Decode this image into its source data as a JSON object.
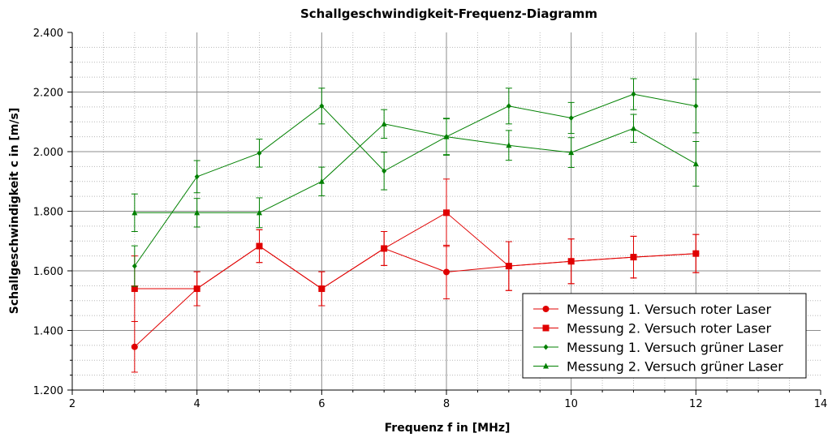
{
  "chart_data": {
    "type": "line",
    "title": "Schallgeschwindigkeit-Frequenz-Diagramm",
    "xlabel": "Frequenz f in [MHz]",
    "ylabel": "Schallgeschwindigkeit c in [m/s]",
    "xlim": [
      2,
      14
    ],
    "ylim": [
      1.2,
      2.4
    ],
    "x_ticks": [
      "2",
      "4",
      "6",
      "8",
      "10",
      "12",
      "14"
    ],
    "y_ticks": [
      "1.200",
      "1.400",
      "1.600",
      "1.800",
      "2.000",
      "2.200",
      "2.400"
    ],
    "grid": true,
    "legend_position": "bottom-right",
    "error_bars": true,
    "series": [
      {
        "name": "Messung 1. Versuch roter Laser",
        "color": "#e00000",
        "marker": "circle",
        "x": [
          3,
          4,
          5,
          6,
          7,
          8,
          9,
          10,
          11,
          12
        ],
        "y": [
          1.345,
          1.54,
          1.683,
          1.54,
          1.675,
          1.596,
          1.616,
          1.632,
          1.646,
          1.658
        ],
        "err": [
          0.085,
          0.057,
          0.055,
          0.057,
          0.057,
          0.09,
          0.082,
          0.075,
          0.07,
          0.064
        ]
      },
      {
        "name": "Messung 2. Versuch roter Laser",
        "color": "#e00000",
        "marker": "square",
        "x": [
          3,
          4,
          5,
          6,
          7,
          8,
          9,
          10,
          11,
          12
        ],
        "y": [
          1.54,
          1.54,
          1.683,
          1.54,
          1.675,
          1.795,
          1.616,
          1.632,
          1.646,
          1.658
        ],
        "err": [
          0.11,
          0.057,
          0.055,
          0.057,
          0.057,
          0.113,
          0.082,
          0.075,
          0.07,
          0.064
        ]
      },
      {
        "name": "Messung 1. Versuch grüner Laser",
        "color": "#008000",
        "marker": "diamond",
        "x": [
          3,
          4,
          5,
          6,
          7,
          8,
          9,
          10,
          11,
          12
        ],
        "y": [
          1.616,
          1.916,
          1.995,
          2.153,
          1.935,
          2.05,
          2.153,
          2.113,
          2.193,
          2.153
        ],
        "err": [
          0.068,
          0.054,
          0.047,
          0.06,
          0.063,
          0.062,
          0.06,
          0.052,
          0.052,
          0.09
        ]
      },
      {
        "name": "Messung 2. Versuch grüner Laser",
        "color": "#008000",
        "marker": "triangle",
        "x": [
          3,
          4,
          5,
          6,
          7,
          8,
          9,
          10,
          11,
          12
        ],
        "y": [
          1.795,
          1.795,
          1.795,
          1.9,
          2.093,
          2.05,
          2.021,
          1.997,
          2.078,
          1.959
        ],
        "err": [
          0.063,
          0.048,
          0.05,
          0.048,
          0.048,
          0.06,
          0.05,
          0.05,
          0.047,
          0.075
        ]
      }
    ]
  }
}
